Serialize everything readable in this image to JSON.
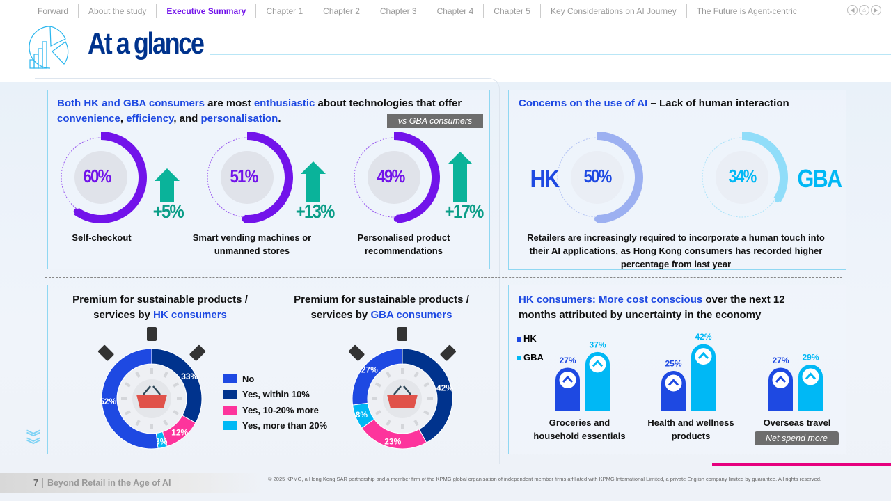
{
  "nav": {
    "items": [
      "Forward",
      "About the study",
      "Executive Summary",
      "Chapter 1",
      "Chapter 2",
      "Chapter 3",
      "Chapter 4",
      "Chapter 5",
      "Key Considerations on AI Journey",
      "The Future is Agent-centric"
    ],
    "active": "Executive Summary"
  },
  "header": {
    "title": "At a glance"
  },
  "enthusiasm": {
    "title_parts": [
      "Both HK and GBA consumers",
      " are most ",
      "enthusiastic",
      " about technologies that offer ",
      "convenience",
      ", ",
      "efficiency",
      ", and ",
      "personalisation",
      "."
    ],
    "badge": "vs GBA consumers",
    "items": [
      {
        "value": "60%",
        "fraction": 0.6,
        "change": "+5%",
        "label": "Self-checkout"
      },
      {
        "value": "51%",
        "fraction": 0.51,
        "change": "+13%",
        "label": "Smart vending machines or unmanned stores"
      },
      {
        "value": "49%",
        "fraction": 0.49,
        "change": "+17%",
        "label": "Personalised product recommendations"
      }
    ]
  },
  "concerns": {
    "title_hl": "Concerns on the use of AI",
    "title_rest": " – Lack of human interaction",
    "hk": {
      "label": "HK",
      "value": "50%",
      "fraction": 0.5,
      "color": "#1e49e2"
    },
    "gba": {
      "label": "GBA",
      "value": "34%",
      "fraction": 0.34,
      "color": "#00b8f5"
    },
    "note": "Retailers are increasingly required to incorporate a human touch into their AI applications, as Hong Kong consumers has recorded higher percentage from last year"
  },
  "premium": {
    "hk_title": [
      "Premium for sustainable products /",
      "services by ",
      "HK consumers"
    ],
    "gba_title": [
      "Premium for sustainable products /",
      "services by ",
      "GBA consumers"
    ],
    "legend": [
      {
        "label": "No",
        "color": "#1e49e2"
      },
      {
        "label": "Yes, within 10%",
        "color": "#00338d"
      },
      {
        "label": "Yes, 10-20% more",
        "color": "#fd349c"
      },
      {
        "label": "Yes, more than 20%",
        "color": "#00b8f5"
      }
    ]
  },
  "chart_data": [
    {
      "type": "pie",
      "title": "Premium for sustainable products / services by HK consumers",
      "categories": [
        "Yes, within 10%",
        "Yes, 10-20% more",
        "Yes, more than 20%",
        "No"
      ],
      "values": [
        33,
        12,
        3,
        52
      ],
      "labels": [
        "33%",
        "12%",
        "3%",
        "52%"
      ]
    },
    {
      "type": "pie",
      "title": "Premium for sustainable products / services by GBA consumers",
      "categories": [
        "Yes, within 10%",
        "Yes, 10-20% more",
        "Yes, more than 20%",
        "No"
      ],
      "values": [
        42,
        23,
        8,
        27
      ],
      "labels": [
        "42%",
        "23%",
        "8%",
        "27%"
      ]
    },
    {
      "type": "bar",
      "title": "HK consumers: More cost conscious over the next 12 months attributed by uncertainty in the economy",
      "categories": [
        "Groceries and household essentials",
        "Health and wellness products",
        "Overseas travel"
      ],
      "series": [
        {
          "name": "HK",
          "values": [
            27,
            25,
            27
          ],
          "color": "#1e49e2"
        },
        {
          "name": "GBA",
          "values": [
            37,
            42,
            29
          ],
          "color": "#00b8f5"
        }
      ],
      "labels": {
        "HK": [
          "27%",
          "25%",
          "27%"
        ],
        "GBA": [
          "37%",
          "42%",
          "29%"
        ]
      }
    }
  ],
  "cost": {
    "title_hl": "HK consumers: More cost conscious",
    "title_rest": " over the next 12 months attributed by uncertainty in the economy",
    "badge": "Net spend more"
  },
  "footer": {
    "page": "7",
    "doc_title": "Beyond Retail in the Age of AI",
    "copyright": "© 2025 KPMG, a Hong Kong SAR partnership and a member firm of the KPMG global organisation of independent member firms affiliated with KPMG International Limited, a private English company limited by guarantee. All rights reserved."
  }
}
